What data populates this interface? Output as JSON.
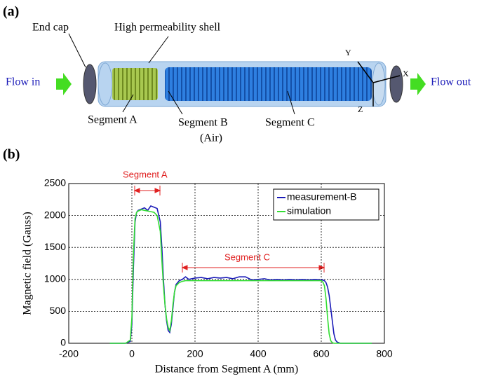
{
  "figure": {
    "panel_a": {
      "label": "(a)",
      "end_cap": "End cap",
      "shell": "High permeability shell",
      "flow_in": "Flow in",
      "flow_out": "Flow out",
      "segment_a": "Segment A",
      "segment_b": "Segment B",
      "segment_b_note": "(Air)",
      "segment_c": "Segment C",
      "axis_x": "X",
      "axis_y": "Y",
      "axis_z": "Z"
    },
    "panel_b": {
      "label": "(b)"
    }
  },
  "chart_data": {
    "type": "line",
    "xlabel": "Distance from Segment A (mm)",
    "ylabel": "Magnetic field (Gauss)",
    "annotations": [
      "Segment A",
      "Segment C"
    ],
    "x": [
      -70,
      -20,
      -5,
      0,
      5,
      10,
      15,
      20,
      30,
      40,
      50,
      60,
      70,
      80,
      90,
      95,
      100,
      105,
      110,
      115,
      120,
      125,
      130,
      135,
      140,
      150,
      160,
      170,
      180,
      200,
      220,
      240,
      260,
      280,
      300,
      320,
      340,
      360,
      380,
      400,
      420,
      440,
      460,
      480,
      500,
      520,
      540,
      560,
      580,
      600,
      605,
      610,
      615,
      620,
      625,
      630,
      635,
      640,
      645,
      650,
      660,
      700,
      760
    ],
    "series": [
      {
        "name": "measurement-B",
        "color": "#1a1ab8",
        "values": [
          0,
          0,
          30,
          300,
          1200,
          1900,
          2050,
          2080,
          2100,
          2120,
          2080,
          2150,
          2130,
          2110,
          1900,
          1500,
          1000,
          600,
          350,
          200,
          170,
          300,
          550,
          800,
          920,
          980,
          1000,
          1040,
          1000,
          1020,
          1030,
          1010,
          1030,
          1020,
          1030,
          1010,
          1040,
          1040,
          990,
          1000,
          1010,
          990,
          1000,
          990,
          1000,
          990,
          1000,
          990,
          1000,
          990,
          990,
          980,
          950,
          880,
          750,
          550,
          350,
          150,
          50,
          20,
          0,
          0,
          0
        ]
      },
      {
        "name": "simulation",
        "color": "#33dd33",
        "values": [
          0,
          0,
          50,
          400,
          1400,
          1950,
          2050,
          2070,
          2090,
          2080,
          2070,
          2060,
          2050,
          2000,
          1750,
          1300,
          900,
          600,
          380,
          250,
          200,
          350,
          600,
          800,
          900,
          950,
          970,
          980,
          980,
          980,
          980,
          980,
          980,
          980,
          980,
          980,
          980,
          980,
          980,
          980,
          980,
          980,
          980,
          980,
          980,
          980,
          980,
          980,
          980,
          980,
          960,
          900,
          700,
          400,
          150,
          40,
          10,
          0,
          0,
          0,
          0,
          0,
          0
        ]
      }
    ],
    "xlim": [
      -200,
      800
    ],
    "xticks": [
      -200,
      0,
      200,
      400,
      600,
      800
    ],
    "ylim": [
      0,
      2500
    ],
    "yticks": [
      0,
      500,
      1000,
      1500,
      2000,
      2500
    ],
    "grid": true,
    "legend": "upper right"
  }
}
